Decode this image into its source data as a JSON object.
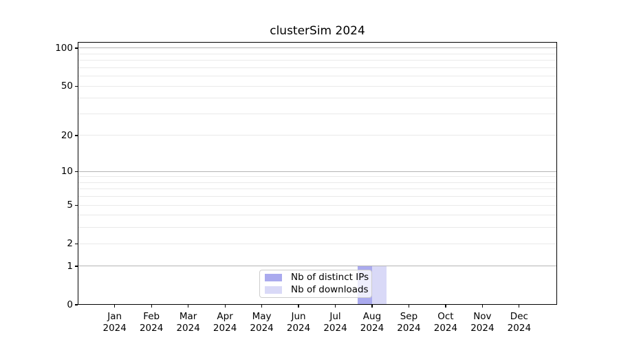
{
  "page": {
    "background_color": "#ffffff"
  },
  "chart_data": {
    "type": "bar",
    "title": "clusterSim 2024",
    "xlabel": "",
    "ylabel": "",
    "grid": "horizontal",
    "legend_position": "lower center",
    "yscale": "log1p",
    "ylim": [
      0,
      112
    ],
    "year_label": "2024",
    "months": [
      "Jan",
      "Feb",
      "Mar",
      "Apr",
      "May",
      "Jun",
      "Jul",
      "Aug",
      "Sep",
      "Oct",
      "Nov",
      "Dec"
    ],
    "categories": [
      "Jan 2024",
      "Feb 2024",
      "Mar 2024",
      "Apr 2024",
      "May 2024",
      "Jun 2024",
      "Jul 2024",
      "Aug 2024",
      "Sep 2024",
      "Oct 2024",
      "Nov 2024",
      "Dec 2024"
    ],
    "series": [
      {
        "name": "Nb of distinct IPs",
        "color": "#aaaaee",
        "values": [
          0,
          0,
          0,
          0,
          0,
          0,
          0,
          1,
          0,
          0,
          0,
          0
        ]
      },
      {
        "name": "Nb of downloads",
        "color": "#d9d9f7",
        "values": [
          0,
          0,
          0,
          0,
          0,
          0,
          0,
          1,
          0,
          0,
          0,
          0
        ]
      }
    ],
    "y_tick_values": [
      0,
      1,
      2,
      5,
      10,
      20,
      50,
      100
    ],
    "y_tick_labels": [
      "0",
      "1",
      "2",
      "5",
      "10",
      "20",
      "50",
      "100"
    ],
    "grid_major_values": [
      1,
      10,
      100
    ],
    "grid_minor_values": [
      2,
      3,
      4,
      5,
      6,
      7,
      8,
      9,
      20,
      30,
      40,
      50,
      60,
      70,
      80,
      90
    ],
    "grid_major_color": "#b4b4b4",
    "grid_minor_color": "#e9e9e9"
  },
  "legend": {
    "items": [
      {
        "label": "Nb of distinct IPs",
        "color": "#aaaaee"
      },
      {
        "label": "Nb of downloads",
        "color": "#d9d9f7"
      }
    ]
  }
}
